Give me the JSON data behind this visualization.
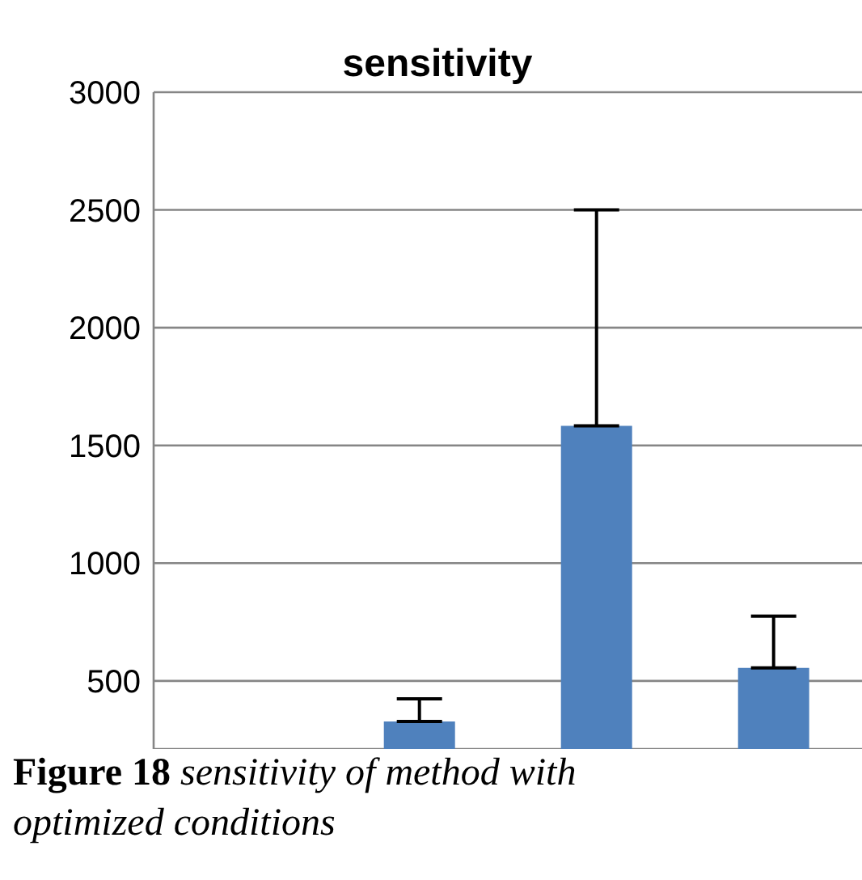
{
  "chart_data": {
    "type": "bar",
    "title": "sensitivity",
    "categories": [
      null,
      null,
      null,
      null
    ],
    "values": [
      null,
      328,
      1583,
      555
    ],
    "errors": [
      null,
      [
        328,
        424
      ],
      [
        1583,
        2500
      ],
      [
        555,
        775
      ]
    ],
    "color": "#4f81bd",
    "ylim": [
      211,
      3000
    ],
    "yticks": [
      500,
      1000,
      1500,
      2000,
      2500,
      3000
    ],
    "grid": "y",
    "tick_labels": "y",
    "annotations": [
      "Figure 18",
      "sensitivity of method with optimized conditions"
    ]
  }
}
